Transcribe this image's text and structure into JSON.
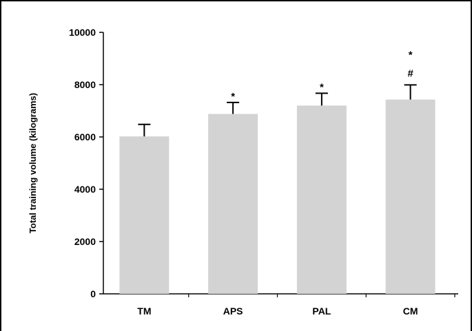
{
  "chart_data": {
    "type": "bar",
    "title": "",
    "xlabel": "",
    "ylabel": "Total training volume (kilograms)",
    "categories": [
      "TM",
      "APS",
      "PAL",
      "CM"
    ],
    "values": [
      6020,
      6880,
      7200,
      7430
    ],
    "error_bars": [
      460,
      440,
      470,
      560
    ],
    "annotations": [
      [],
      [
        "*"
      ],
      [
        "*"
      ],
      [
        "*",
        "#"
      ]
    ],
    "ylim": [
      0,
      10000
    ],
    "yticks": [
      0,
      2000,
      4000,
      6000,
      8000,
      10000
    ],
    "ytick_labels": [
      "0",
      "2000",
      "4000",
      "6000",
      "8000",
      "10000"
    ],
    "grid": false,
    "bar_color": "#d3d3d3",
    "errorbar_color": "#000000"
  }
}
